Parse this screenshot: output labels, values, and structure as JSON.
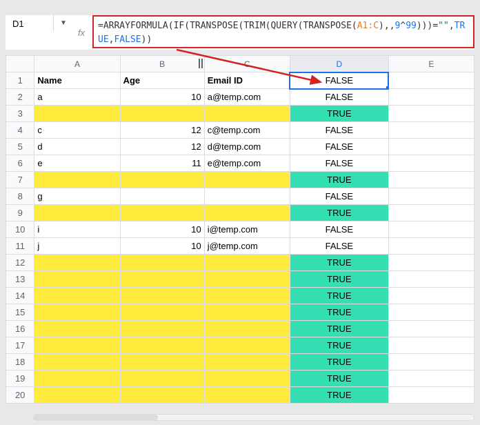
{
  "cellRef": "D1",
  "formula": {
    "parts": [
      {
        "text": "=",
        "cls": "f-gray"
      },
      {
        "text": "ARRAYFORMULA",
        "cls": "f-gray"
      },
      {
        "text": "(",
        "cls": "f-gray"
      },
      {
        "text": "IF",
        "cls": "f-gray"
      },
      {
        "text": "(",
        "cls": "f-gray"
      },
      {
        "text": "TRANSPOSE",
        "cls": "f-gray"
      },
      {
        "text": "(",
        "cls": "f-gray"
      },
      {
        "text": "TRIM",
        "cls": "f-gray"
      },
      {
        "text": "(",
        "cls": "f-gray"
      },
      {
        "text": "QUERY",
        "cls": "f-gray"
      },
      {
        "text": "(",
        "cls": "f-gray"
      },
      {
        "text": "TRANSPOSE",
        "cls": "f-gray"
      },
      {
        "text": "(",
        "cls": "f-gray"
      },
      {
        "text": "A1:C",
        "cls": "f-orange"
      },
      {
        "text": "),,",
        "cls": "f-gray"
      },
      {
        "text": "9",
        "cls": "f-blue"
      },
      {
        "text": "^",
        "cls": "f-gray"
      },
      {
        "text": "99",
        "cls": "f-blue"
      },
      {
        "text": ")))",
        "cls": "f-gray"
      },
      {
        "text": "=",
        "cls": "f-gray"
      },
      {
        "text": "\"\"",
        "cls": "f-green"
      },
      {
        "text": ",",
        "cls": "f-gray"
      },
      {
        "text": "TRUE",
        "cls": "f-blue"
      },
      {
        "text": ",",
        "cls": "f-gray"
      },
      {
        "text": "FALSE",
        "cls": "f-blue"
      },
      {
        "text": "))",
        "cls": "f-gray"
      }
    ]
  },
  "columns": [
    "A",
    "B",
    "C",
    "D",
    "E"
  ],
  "selectedCol": "D",
  "headers": {
    "A": "Name",
    "B": "Age",
    "C": "Email ID"
  },
  "rows": [
    {
      "n": 1,
      "A": "Name",
      "B": "Age",
      "C": "Email ID",
      "D": "FALSE",
      "bold": true,
      "selectedD": true
    },
    {
      "n": 2,
      "A": "a",
      "B": "10",
      "C": "a@temp.com",
      "D": "FALSE"
    },
    {
      "n": 3,
      "yellowABC": true,
      "D": "TRUE",
      "tealD": true
    },
    {
      "n": 4,
      "A": "c",
      "B": "12",
      "C": "c@temp.com",
      "D": "FALSE"
    },
    {
      "n": 5,
      "A": "d",
      "B": "12",
      "C": "d@temp.com",
      "D": "FALSE"
    },
    {
      "n": 6,
      "A": "e",
      "B": "11",
      "C": "e@temp.com",
      "D": "FALSE"
    },
    {
      "n": 7,
      "yellowABC": true,
      "D": "TRUE",
      "tealD": true
    },
    {
      "n": 8,
      "A": "g",
      "D": "FALSE"
    },
    {
      "n": 9,
      "yellowABC": true,
      "D": "TRUE",
      "tealD": true
    },
    {
      "n": 10,
      "A": "i",
      "B": "10",
      "C": "i@temp.com",
      "D": "FALSE"
    },
    {
      "n": 11,
      "A": "j",
      "B": "10",
      "C": "j@temp.com",
      "D": "FALSE"
    },
    {
      "n": 12,
      "yellowABC": true,
      "D": "TRUE",
      "tealD": true
    },
    {
      "n": 13,
      "yellowABC": true,
      "D": "TRUE",
      "tealD": true
    },
    {
      "n": 14,
      "yellowABC": true,
      "D": "TRUE",
      "tealD": true
    },
    {
      "n": 15,
      "yellowABC": true,
      "D": "TRUE",
      "tealD": true
    },
    {
      "n": 16,
      "yellowABC": true,
      "D": "TRUE",
      "tealD": true
    },
    {
      "n": 17,
      "yellowABC": true,
      "D": "TRUE",
      "tealD": true
    },
    {
      "n": 18,
      "yellowABC": true,
      "D": "TRUE",
      "tealD": true
    },
    {
      "n": 19,
      "yellowABC": true,
      "D": "TRUE",
      "tealD": true
    },
    {
      "n": 20,
      "yellowABC": true,
      "D": "TRUE",
      "tealD": true
    }
  ],
  "colors": {
    "yellow": "#ffeb3b",
    "teal": "#34e0b3",
    "selectBorder": "#1a73e8",
    "arrow": "#d42222"
  }
}
